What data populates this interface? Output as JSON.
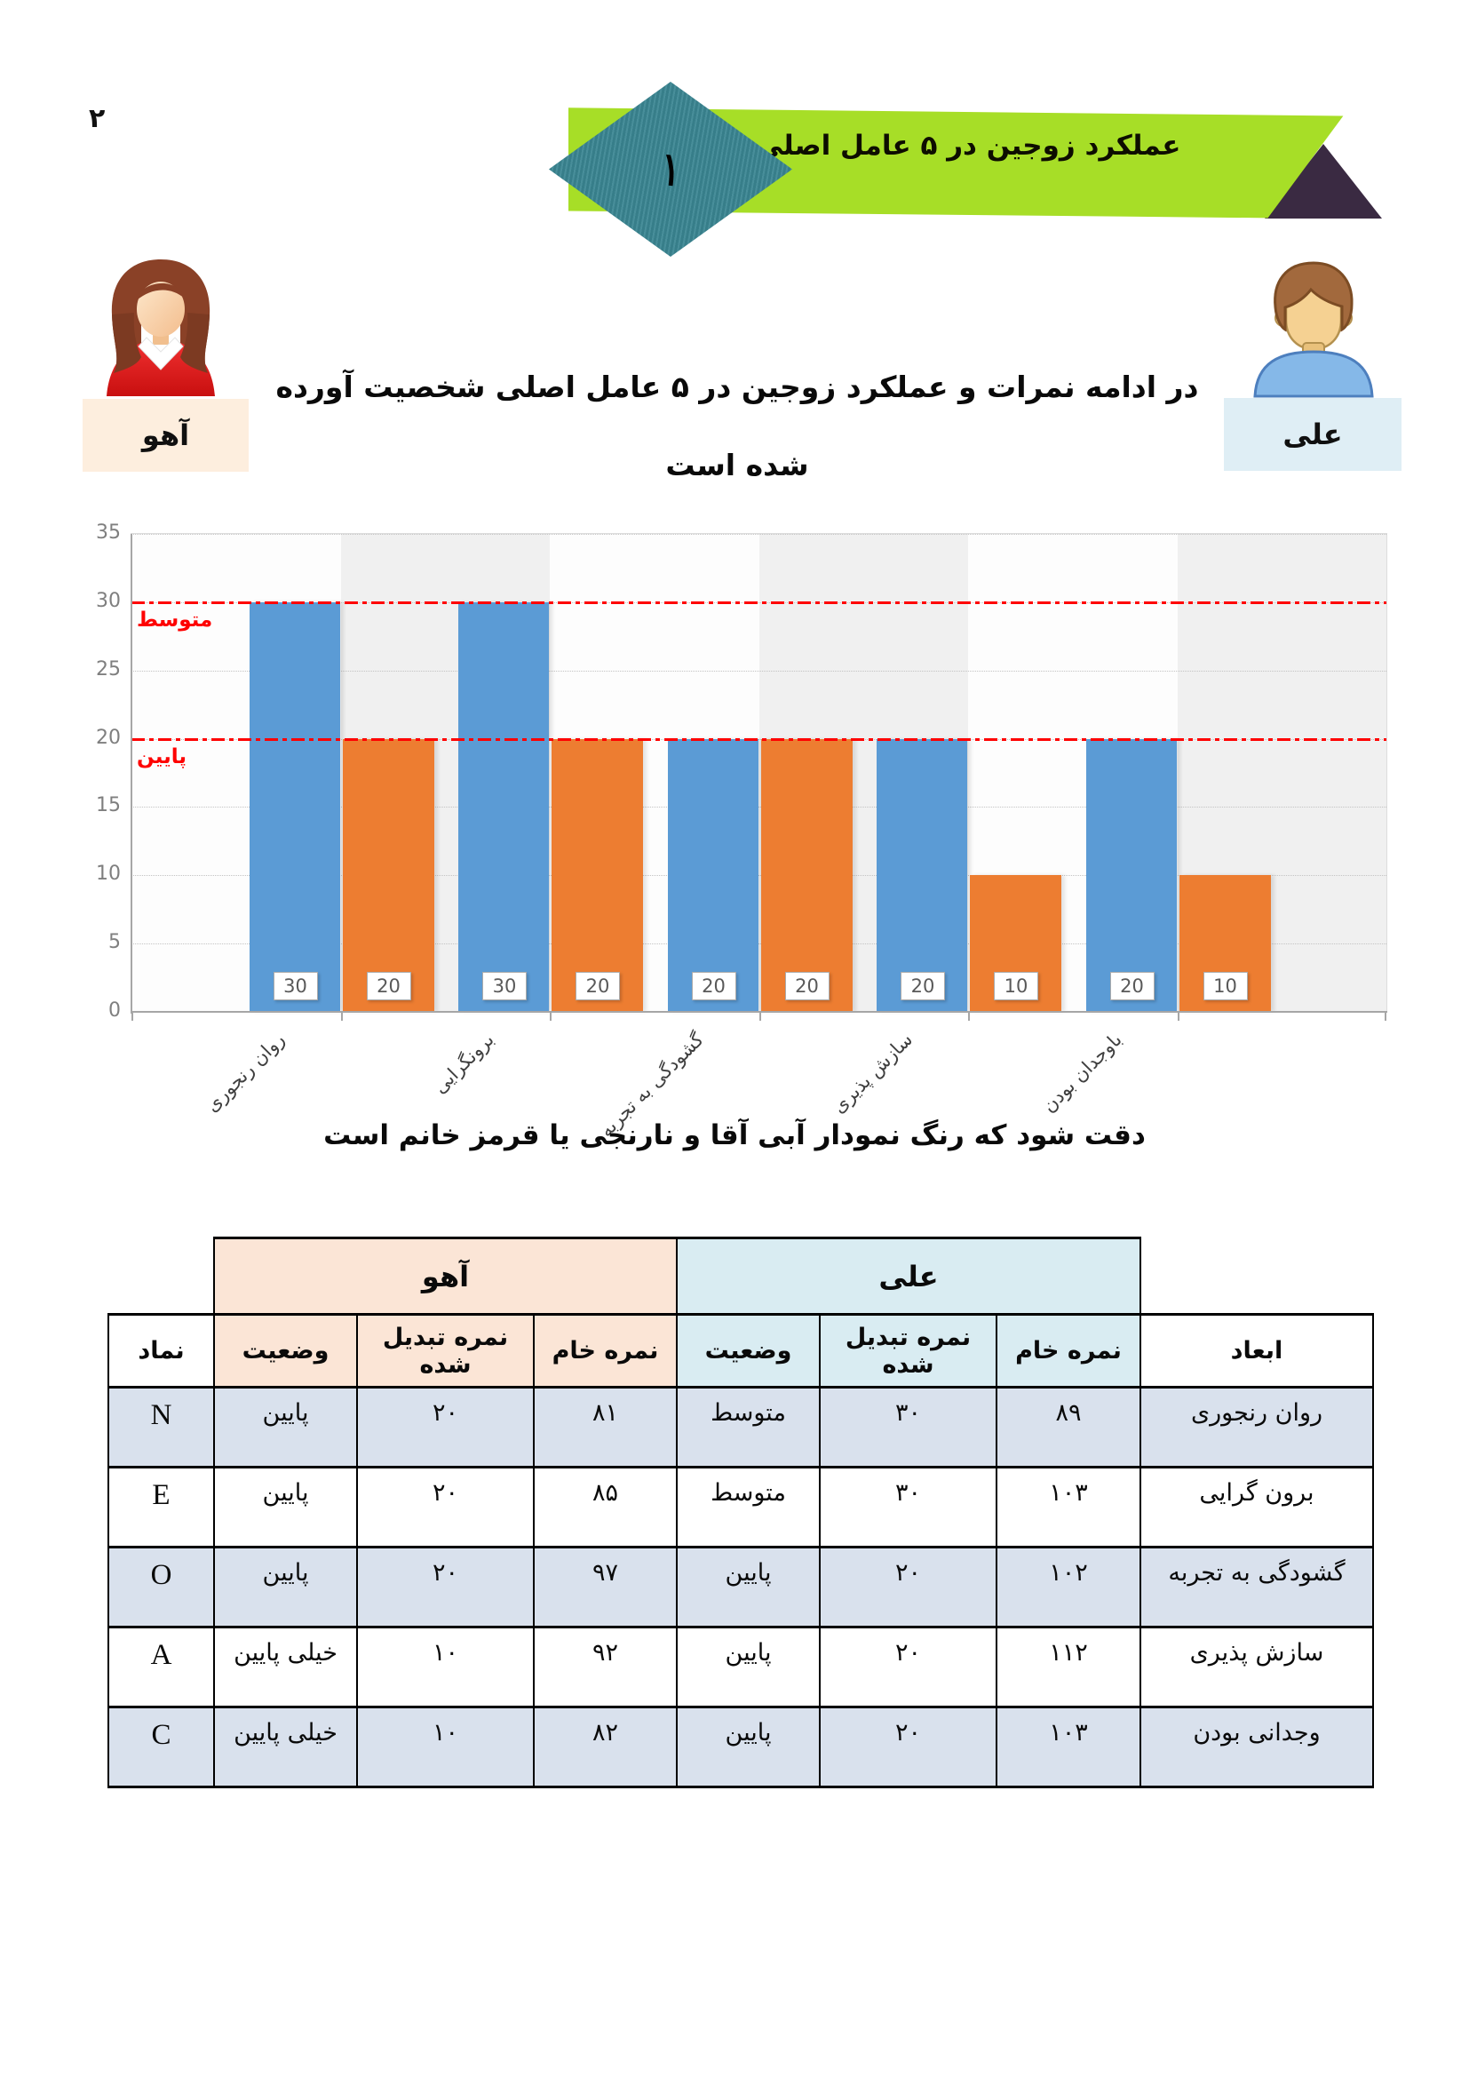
{
  "page": {
    "number": "۲"
  },
  "banner": {
    "step_number": "۱",
    "title": "عملکرد زوجین در ۵ عامل اصلی",
    "ribbon_color": "#a7de27",
    "diamond_color": "#3a8692",
    "triangle_color": "#3a2a42"
  },
  "persons": {
    "wife": {
      "name": "آهو",
      "label_bg": "#fdeede"
    },
    "husband": {
      "name": "علی",
      "label_bg": "#dfeef5"
    }
  },
  "intro": {
    "line1": "در ادامه نمرات و عملکرد زوجین در ۵ عامل اصلی شخصیت آورده",
    "line2": "شده است"
  },
  "chart_data": {
    "type": "bar",
    "categories": [
      "روان رنجوری",
      "برونگرایی",
      "گشودگی به تجربه",
      "سازش پذیری",
      "باوجدان بودن"
    ],
    "series": [
      {
        "name": "علی (آقا - آبی)",
        "color": "#5b9bd5",
        "values": [
          30,
          30,
          20,
          20,
          20
        ]
      },
      {
        "name": "آهو (خانم - نارنجی)",
        "color": "#ed7d31",
        "values": [
          20,
          20,
          20,
          10,
          10
        ]
      }
    ],
    "ylim": [
      0,
      35
    ],
    "ytick_step": 5,
    "grid": true,
    "data_labels": true,
    "reference_lines": [
      {
        "value": 30,
        "label": "متوسط",
        "color": "#fe0000"
      },
      {
        "value": 20,
        "label": "پایین",
        "color": "#fe0000"
      }
    ],
    "band_colors": [
      "#fdfdfd",
      "#f0f0f0"
    ]
  },
  "caption": "دقت شود که رنگ نمودار آبی آقا و نارنجی یا قرمز خانم است",
  "table": {
    "group_headers": [
      {
        "label": "آهو",
        "bg": "#fbe5d6"
      },
      {
        "label": "علی",
        "bg": "#d9ecf2"
      }
    ],
    "columns": [
      "نماد",
      "وضعیت",
      "نمره تبدیل شده",
      "نمره خام",
      "وضعیت",
      "نمره تبدیل شده",
      "نمره خام",
      "ابعاد"
    ],
    "rows": [
      [
        "N",
        "پایین",
        "۲۰",
        "۸۱",
        "متوسط",
        "۳۰",
        "۸۹",
        "روان رنجوری"
      ],
      [
        "E",
        "پایین",
        "۲۰",
        "۸۵",
        "متوسط",
        "۳۰",
        "۱۰۳",
        "برون گرایی"
      ],
      [
        "O",
        "پایین",
        "۲۰",
        "۹۷",
        "پایین",
        "۲۰",
        "۱۰۲",
        "گشودگی به تجربه"
      ],
      [
        "A",
        "خیلی پایین",
        "۱۰",
        "۹۲",
        "پایین",
        "۲۰",
        "۱۱۲",
        "سازش پذیری"
      ],
      [
        "C",
        "خیلی پایین",
        "۱۰",
        "۸۲",
        "پایین",
        "۲۰",
        "۱۰۳",
        "وجدانی بودن"
      ]
    ],
    "row_alt_bg": "#d9e1ed"
  }
}
